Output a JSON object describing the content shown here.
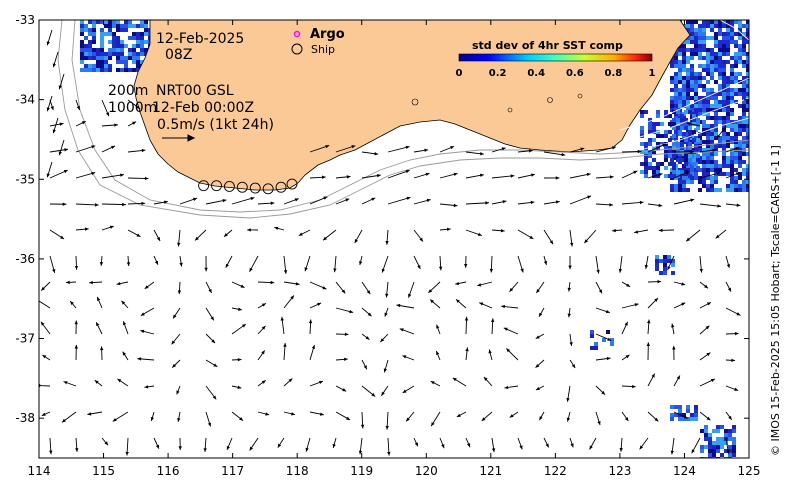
{
  "chart_data": {
    "type": "map",
    "xlim": [
      114,
      125
    ],
    "ylim": [
      -38.5,
      -33
    ],
    "x_ticks": [
      "114",
      "115",
      "116",
      "117",
      "118",
      "119",
      "120",
      "121",
      "122",
      "123",
      "124",
      "125"
    ],
    "y_ticks": [
      "-33",
      "-34",
      "-35",
      "-36",
      "-37",
      "-38"
    ],
    "annotations": {
      "date": "12-Feb-2025",
      "hour": "08Z",
      "depth_top": "200m",
      "product": "NRT00 GSL",
      "depth_bottom": "1000m",
      "product_time": "12-Feb 00:00Z",
      "scale": "0.5m/s (1kt 24h)"
    },
    "legend": {
      "argo_label": "Argo",
      "ship_label": "Ship"
    },
    "colorbar": {
      "title": "std dev of 4hr SST comp",
      "ticks": [
        "0",
        "0.2",
        "0.4",
        "0.6",
        "0.8",
        "1"
      ]
    },
    "credit": "© IMOS 15-Feb-2025 15:05 Hobart; Tscale=CARS+[-1 1]",
    "colors": {
      "land": "#fbc996",
      "sst_low": "#1e22ba",
      "sst_mid": "#2a7af0",
      "contour": "#9a9a9a",
      "arrow": "#000000"
    },
    "ship_track": [
      {
        "lon": 116.55,
        "lat": -35.08
      },
      {
        "lon": 116.75,
        "lat": -35.08
      },
      {
        "lon": 116.95,
        "lat": -35.09
      },
      {
        "lon": 117.15,
        "lat": -35.1
      },
      {
        "lon": 117.35,
        "lat": -35.11
      },
      {
        "lon": 117.55,
        "lat": -35.12
      },
      {
        "lon": 117.75,
        "lat": -35.1
      },
      {
        "lon": 117.92,
        "lat": -35.06
      }
    ]
  }
}
